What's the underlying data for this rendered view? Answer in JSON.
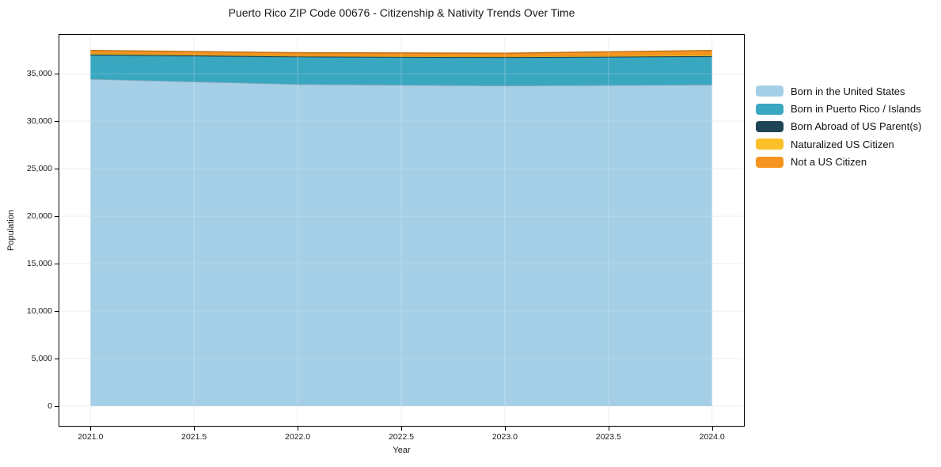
{
  "title": "Puerto Rico ZIP Code 00676 - Citizenship & Nativity Trends Over Time",
  "chart_data": {
    "type": "area",
    "stacked": true,
    "title": "Puerto Rico ZIP Code 00676 - Citizenship & Nativity Trends Over Time",
    "xlabel": "Year",
    "ylabel": "Population",
    "x": [
      2021,
      2022,
      2023,
      2024
    ],
    "series": [
      {
        "name": "Born in the United States",
        "color": "#a5cfe6",
        "values": [
          34450,
          33900,
          33750,
          33850
        ]
      },
      {
        "name": "Born in Puerto Rico / Islands",
        "color": "#3aa7c0",
        "values": [
          2500,
          2870,
          2950,
          2950
        ]
      },
      {
        "name": "Born Abroad of US Parent(s)",
        "color": "#1f4456",
        "values": [
          80,
          50,
          40,
          60
        ]
      },
      {
        "name": "Naturalized US Citizen",
        "color": "#fbbf28",
        "values": [
          130,
          90,
          90,
          150
        ]
      },
      {
        "name": "Not a US Citizen",
        "color": "#f7941f",
        "values": [
          290,
          300,
          330,
          440
        ]
      }
    ],
    "x_ticks": [
      "2021.0",
      "2021.5",
      "2022.0",
      "2022.5",
      "2023.0",
      "2023.5",
      "2024.0"
    ],
    "y_ticks": [
      "0",
      "5,000",
      "10,000",
      "15,000",
      "20,000",
      "25,000",
      "30,000",
      "35,000"
    ],
    "xlim": [
      2020.85,
      2024.15
    ],
    "ylim": [
      -2000,
      39100
    ],
    "grid": true,
    "legend_position": "right-outside",
    "style": {
      "grid_color": "#ebebeb",
      "axis_color": "#000000",
      "background": "#ffffff",
      "text_color": "#1a1a1a"
    }
  }
}
